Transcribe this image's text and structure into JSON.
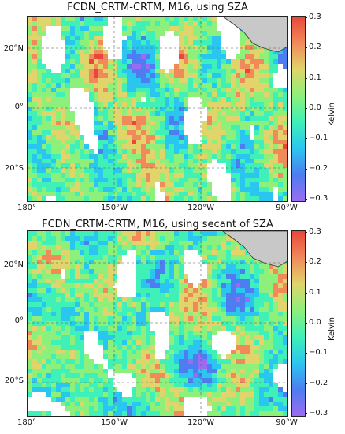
{
  "panels": [
    {
      "title": "FCDN_CRTM-CRTM, M16, using SZA",
      "lat_ticks": [
        "20°N",
        "0°",
        "20°S"
      ],
      "lon_ticks": [
        "180°",
        "150°W",
        "120°W",
        "90°W"
      ],
      "colorbar": {
        "label": "Kelvin",
        "ticks": [
          "0.3",
          "0.2",
          "0.1",
          "0.0",
          "−0.1",
          "−0.2",
          "−0.3"
        ]
      }
    },
    {
      "title": "FCDN_CRTM-CRTM, M16, using secant of SZA",
      "lat_ticks": [
        "20°N",
        "0°",
        "20°S"
      ],
      "lon_ticks": [
        "180°",
        "150°W",
        "120°W",
        "90°W"
      ],
      "colorbar": {
        "label": "Kelvin",
        "ticks": [
          "0.3",
          "0.2",
          "0.1",
          "0.0",
          "−0.1",
          "−0.2",
          "−0.3"
        ]
      }
    }
  ],
  "colors": {
    "land": "#c8c8c8",
    "colormap": [
      "#9b6cf2",
      "#4d7df0",
      "#2bc6f0",
      "#3ff0b8",
      "#8cf07a",
      "#e0d46a",
      "#f08a5a",
      "#e8483a"
    ]
  }
}
